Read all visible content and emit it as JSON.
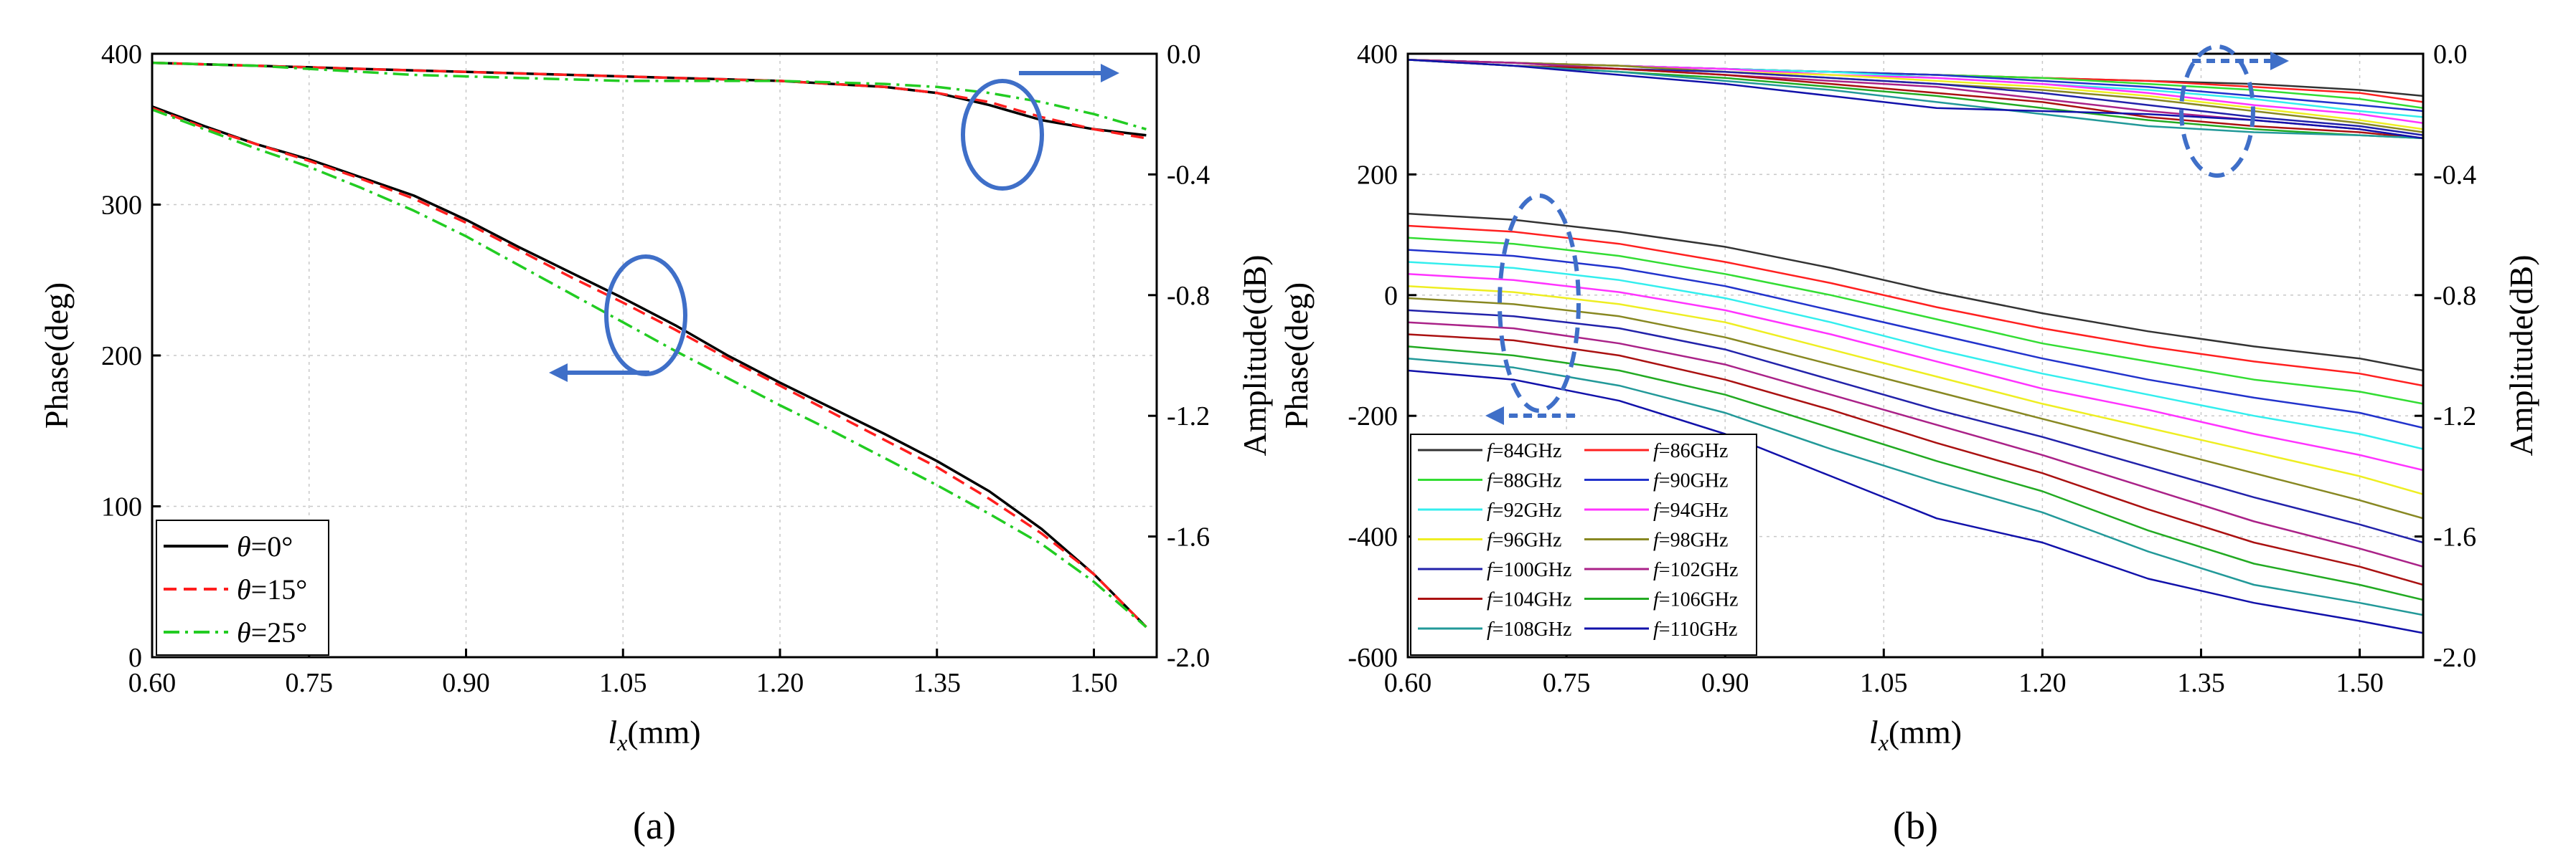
{
  "chart_data": [
    {
      "id": "a",
      "type": "line",
      "caption": "(a)",
      "xlabel_main": "l",
      "xlabel_sub": "x",
      "xlabel_unit": "(mm)",
      "ylabel": "Phase(deg)",
      "ylabel_right": "Amplitude(dB)",
      "xlim": [
        0.6,
        1.56
      ],
      "ylim": [
        0,
        400
      ],
      "y2lim": [
        -2.0,
        0.0
      ],
      "x_ticks": [
        "0.60",
        "0.75",
        "0.90",
        "1.05",
        "1.20",
        "1.35",
        "1.50"
      ],
      "y_ticks": [
        "0",
        "100",
        "200",
        "300",
        "400"
      ],
      "y2_ticks": [
        "-2.0",
        "-1.6",
        "-1.2",
        "-0.8",
        "-0.4",
        "0.0"
      ],
      "x": [
        0.6,
        0.65,
        0.7,
        0.75,
        0.8,
        0.85,
        0.9,
        0.95,
        1.0,
        1.05,
        1.1,
        1.15,
        1.2,
        1.25,
        1.3,
        1.35,
        1.4,
        1.45,
        1.5,
        1.55
      ],
      "series": [
        {
          "name": "θ=0°",
          "symbol": "θ",
          "value_text": "=0°",
          "color": "#000000",
          "dash": "solid",
          "phase": [
            365,
            352,
            340,
            330,
            318,
            306,
            290,
            272,
            255,
            238,
            220,
            200,
            182,
            165,
            148,
            130,
            110,
            85,
            55,
            20
          ],
          "amplitude": [
            -0.03,
            -0.035,
            -0.04,
            -0.045,
            -0.05,
            -0.055,
            -0.06,
            -0.065,
            -0.07,
            -0.075,
            -0.08,
            -0.085,
            -0.09,
            -0.1,
            -0.11,
            -0.13,
            -0.17,
            -0.22,
            -0.25,
            -0.27
          ]
        },
        {
          "name": "θ=15°",
          "symbol": "θ",
          "value_text": "=15°",
          "color": "#ff1e1e",
          "dash": "dashed",
          "phase": [
            364,
            351,
            340,
            329,
            317,
            304,
            288,
            270,
            252,
            235,
            217,
            198,
            180,
            162,
            144,
            126,
            105,
            82,
            55,
            20
          ],
          "amplitude": [
            -0.03,
            -0.035,
            -0.04,
            -0.045,
            -0.05,
            -0.055,
            -0.06,
            -0.065,
            -0.07,
            -0.075,
            -0.08,
            -0.085,
            -0.09,
            -0.1,
            -0.11,
            -0.13,
            -0.16,
            -0.21,
            -0.25,
            -0.28
          ]
        },
        {
          "name": "θ=25°",
          "symbol": "θ",
          "value_text": "=25°",
          "color": "#22cc22",
          "dash": "dashdot",
          "phase": [
            363,
            350,
            337,
            325,
            311,
            296,
            279,
            260,
            241,
            222,
            203,
            185,
            167,
            150,
            132,
            114,
            95,
            75,
            50,
            20
          ],
          "amplitude": [
            -0.03,
            -0.035,
            -0.04,
            -0.05,
            -0.06,
            -0.07,
            -0.075,
            -0.08,
            -0.085,
            -0.09,
            -0.09,
            -0.09,
            -0.09,
            -0.095,
            -0.1,
            -0.11,
            -0.13,
            -0.16,
            -0.2,
            -0.25
          ]
        }
      ]
    },
    {
      "id": "b",
      "type": "line",
      "caption": "(b)",
      "xlabel_main": "l",
      "xlabel_sub": "x",
      "xlabel_unit": "(mm)",
      "ylabel": "Phase(deg)",
      "ylabel_right": "Amplitude(dB)",
      "xlim": [
        0.6,
        1.56
      ],
      "ylim": [
        -600,
        400
      ],
      "y2lim": [
        -2.0,
        0.0
      ],
      "x_ticks": [
        "0.60",
        "0.75",
        "0.90",
        "1.05",
        "1.20",
        "1.35",
        "1.50"
      ],
      "y_ticks": [
        "-600",
        "-400",
        "-200",
        "0",
        "200",
        "400"
      ],
      "y2_ticks": [
        "-2.0",
        "-1.6",
        "-1.2",
        "-0.8",
        "-0.4",
        "0.0"
      ],
      "x": [
        0.6,
        0.7,
        0.8,
        0.9,
        1.0,
        1.1,
        1.2,
        1.3,
        1.4,
        1.5,
        1.56
      ],
      "series": [
        {
          "name": "f=84GHz",
          "symbol": "f",
          "value_text": "=84GHz",
          "color": "#333333",
          "phase": [
            135,
            125,
            105,
            80,
            45,
            5,
            -30,
            -60,
            -85,
            -105,
            -125
          ],
          "amplitude": [
            -0.02,
            -0.03,
            -0.04,
            -0.05,
            -0.06,
            -0.07,
            -0.08,
            -0.09,
            -0.1,
            -0.12,
            -0.14
          ]
        },
        {
          "name": "f=86GHz",
          "symbol": "f",
          "value_text": "=86GHz",
          "color": "#ff2020",
          "phase": [
            115,
            105,
            85,
            55,
            20,
            -20,
            -55,
            -85,
            -110,
            -130,
            -150
          ],
          "amplitude": [
            -0.02,
            -0.03,
            -0.04,
            -0.05,
            -0.06,
            -0.07,
            -0.08,
            -0.09,
            -0.11,
            -0.13,
            -0.16
          ]
        },
        {
          "name": "f=88GHz",
          "symbol": "f",
          "value_text": "=88GHz",
          "color": "#33dd33",
          "phase": [
            95,
            85,
            65,
            35,
            0,
            -40,
            -80,
            -110,
            -140,
            -160,
            -180
          ],
          "amplitude": [
            -0.02,
            -0.03,
            -0.04,
            -0.05,
            -0.06,
            -0.07,
            -0.08,
            -0.1,
            -0.12,
            -0.15,
            -0.18
          ]
        },
        {
          "name": "f=90GHz",
          "symbol": "f",
          "value_text": "=90GHz",
          "color": "#2233cc",
          "phase": [
            75,
            65,
            45,
            15,
            -25,
            -65,
            -105,
            -140,
            -170,
            -195,
            -220
          ],
          "amplitude": [
            -0.02,
            -0.03,
            -0.04,
            -0.05,
            -0.06,
            -0.07,
            -0.09,
            -0.11,
            -0.14,
            -0.17,
            -0.19
          ]
        },
        {
          "name": "f=92GHz",
          "symbol": "f",
          "value_text": "=92GHz",
          "color": "#33eeee",
          "phase": [
            55,
            45,
            25,
            -5,
            -45,
            -90,
            -130,
            -165,
            -200,
            -230,
            -255
          ],
          "amplitude": [
            -0.02,
            -0.03,
            -0.04,
            -0.05,
            -0.06,
            -0.08,
            -0.1,
            -0.12,
            -0.15,
            -0.19,
            -0.21
          ]
        },
        {
          "name": "f=94GHz",
          "symbol": "f",
          "value_text": "=94GHz",
          "color": "#ff33ff",
          "phase": [
            35,
            25,
            5,
            -25,
            -65,
            -110,
            -155,
            -190,
            -230,
            -265,
            -290
          ],
          "amplitude": [
            -0.02,
            -0.03,
            -0.04,
            -0.05,
            -0.07,
            -0.08,
            -0.1,
            -0.13,
            -0.17,
            -0.2,
            -0.23
          ]
        },
        {
          "name": "f=96GHz",
          "symbol": "f",
          "value_text": "=96GHz",
          "color": "#eeee22",
          "phase": [
            15,
            5,
            -15,
            -45,
            -90,
            -135,
            -180,
            -220,
            -260,
            -300,
            -330
          ],
          "amplitude": [
            -0.02,
            -0.03,
            -0.04,
            -0.06,
            -0.07,
            -0.09,
            -0.11,
            -0.14,
            -0.18,
            -0.22,
            -0.25
          ]
        },
        {
          "name": "f=98GHz",
          "symbol": "f",
          "value_text": "=98GHz",
          "color": "#888822",
          "phase": [
            -5,
            -15,
            -35,
            -70,
            -115,
            -160,
            -205,
            -250,
            -295,
            -340,
            -370
          ],
          "amplitude": [
            -0.02,
            -0.03,
            -0.04,
            -0.06,
            -0.08,
            -0.1,
            -0.12,
            -0.15,
            -0.19,
            -0.23,
            -0.26
          ]
        },
        {
          "name": "f=100GHz",
          "symbol": "f",
          "value_text": "=100GHz",
          "color": "#2222aa",
          "phase": [
            -25,
            -35,
            -55,
            -90,
            -140,
            -190,
            -235,
            -285,
            -335,
            -380,
            -410
          ],
          "amplitude": [
            -0.02,
            -0.03,
            -0.05,
            -0.06,
            -0.08,
            -0.1,
            -0.13,
            -0.17,
            -0.21,
            -0.24,
            -0.27
          ]
        },
        {
          "name": "f=102GHz",
          "symbol": "f",
          "value_text": "=102GHz",
          "color": "#aa2288",
          "phase": [
            -45,
            -55,
            -80,
            -115,
            -165,
            -215,
            -265,
            -320,
            -375,
            -420,
            -450
          ],
          "amplitude": [
            -0.02,
            -0.03,
            -0.05,
            -0.07,
            -0.09,
            -0.11,
            -0.15,
            -0.19,
            -0.22,
            -0.25,
            -0.28
          ]
        },
        {
          "name": "f=104GHz",
          "symbol": "f",
          "value_text": "=104GHz",
          "color": "#aa1111",
          "phase": [
            -65,
            -75,
            -100,
            -140,
            -190,
            -245,
            -295,
            -355,
            -410,
            -450,
            -480
          ],
          "amplitude": [
            -0.02,
            -0.04,
            -0.05,
            -0.07,
            -0.1,
            -0.13,
            -0.16,
            -0.21,
            -0.24,
            -0.26,
            -0.28
          ]
        },
        {
          "name": "f=106GHz",
          "symbol": "f",
          "value_text": "=106GHz",
          "color": "#22aa22",
          "phase": [
            -85,
            -100,
            -125,
            -165,
            -220,
            -275,
            -325,
            -390,
            -445,
            -480,
            -505
          ],
          "amplitude": [
            -0.02,
            -0.04,
            -0.06,
            -0.08,
            -0.11,
            -0.14,
            -0.18,
            -0.22,
            -0.25,
            -0.27,
            -0.28
          ]
        },
        {
          "name": "f=108GHz",
          "symbol": "f",
          "value_text": "=108GHz",
          "color": "#229999",
          "phase": [
            -105,
            -120,
            -150,
            -195,
            -255,
            -310,
            -360,
            -425,
            -480,
            -510,
            -530
          ],
          "amplitude": [
            -0.02,
            -0.04,
            -0.06,
            -0.09,
            -0.12,
            -0.16,
            -0.2,
            -0.24,
            -0.26,
            -0.27,
            -0.28
          ]
        },
        {
          "name": "f=110GHz",
          "symbol": "f",
          "value_text": "=110GHz",
          "color": "#1111aa",
          "phase": [
            -125,
            -140,
            -175,
            -230,
            -300,
            -370,
            -410,
            -470,
            -510,
            -540,
            -560
          ],
          "amplitude": [
            -0.02,
            -0.04,
            -0.07,
            -0.1,
            -0.14,
            -0.18,
            -0.19,
            -0.2,
            -0.22,
            -0.25,
            -0.28
          ]
        }
      ]
    }
  ]
}
